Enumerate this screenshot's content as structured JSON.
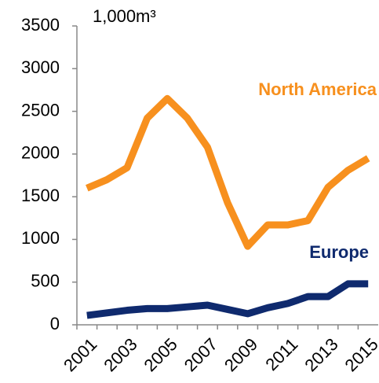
{
  "chart_data": {
    "type": "line",
    "unit_label": "1,000m³",
    "categories": [
      "2001",
      null,
      "2003",
      null,
      "2005",
      null,
      "2007",
      null,
      "2009",
      null,
      "2011",
      null,
      "2013",
      null,
      "2015"
    ],
    "series": [
      {
        "name": "North America",
        "color": "#f7901e",
        "values": [
          1600,
          1700,
          1840,
          2420,
          2650,
          2420,
          2080,
          1430,
          920,
          1170,
          1170,
          1220,
          1610,
          1810,
          1950
        ]
      },
      {
        "name": "Europe",
        "color": "#0f2a6e",
        "values": [
          110,
          140,
          170,
          190,
          190,
          210,
          230,
          180,
          130,
          200,
          250,
          330,
          330,
          480,
          480
        ]
      }
    ],
    "ylim": [
      0,
      3500
    ],
    "yticks": [
      0,
      500,
      1000,
      1500,
      2000,
      2500,
      3000,
      3500
    ],
    "grid": false
  }
}
